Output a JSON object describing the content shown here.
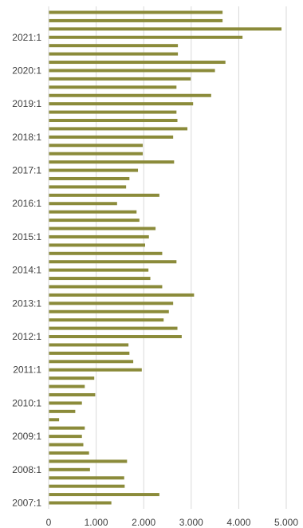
{
  "chart_data": {
    "type": "bar",
    "orientation": "horizontal",
    "title": "",
    "xlabel": "",
    "ylabel": "",
    "xlim": [
      0,
      5000
    ],
    "x_ticks": [
      0,
      1000,
      2000,
      3000,
      4000,
      5000
    ],
    "x_tick_labels": [
      "0",
      "1.000",
      "2.000",
      "3.000",
      "4.000",
      "5.000"
    ],
    "grid": "vertical",
    "legend": "none",
    "bar_color": "#8B8B3A",
    "grid_color": "#D9D9D9",
    "categories": [
      "2007:1",
      "2007:2",
      "2007:3",
      "2007:4",
      "2008:1",
      "2008:2",
      "2008:3",
      "2008:4",
      "2009:1",
      "2009:2",
      "2009:3",
      "2009:4",
      "2010:1",
      "2010:2",
      "2010:3",
      "2010:4",
      "2011:1",
      "2011:2",
      "2011:3",
      "2011:4",
      "2012:1",
      "2012:2",
      "2012:3",
      "2012:4",
      "2013:1",
      "2013:2",
      "2013:3",
      "2013:4",
      "2014:1",
      "2014:2",
      "2014:3",
      "2014:4",
      "2015:1",
      "2015:2",
      "2015:3",
      "2015:4",
      "2016:1",
      "2016:2",
      "2016:3",
      "2016:4",
      "2017:1",
      "2017:2",
      "2017:3",
      "2017:4",
      "2018:1",
      "2018:2",
      "2018:3",
      "2018:4",
      "2019:1",
      "2019:2",
      "2019:3",
      "2019:4",
      "2020:1",
      "2020:2",
      "2020:3",
      "2020:4",
      "2021:1",
      "2021:2",
      "2021:3",
      "2021:4"
    ],
    "y_tick_labels": [
      "2007:1",
      "2008:1",
      "2009:1",
      "2010:1",
      "2011:1",
      "2012:1",
      "2013:1",
      "2014:1",
      "2015:1",
      "2016:1",
      "2017:1",
      "2018:1",
      "2019:1",
      "2020:1",
      "2021:1"
    ],
    "values": [
      1320,
      2330,
      1600,
      1590,
      870,
      1650,
      850,
      730,
      700,
      760,
      220,
      560,
      700,
      980,
      760,
      960,
      1960,
      1780,
      1700,
      1680,
      2800,
      2710,
      2420,
      2530,
      2620,
      3060,
      2390,
      2140,
      2100,
      2690,
      2390,
      2030,
      2110,
      2250,
      1910,
      1850,
      1440,
      2330,
      1630,
      1700,
      1880,
      2640,
      1980,
      1980,
      2620,
      2920,
      2710,
      2690,
      3040,
      3420,
      2690,
      2990,
      3500,
      3720,
      2720,
      2720,
      4080,
      4900,
      3660,
      3660
    ]
  }
}
